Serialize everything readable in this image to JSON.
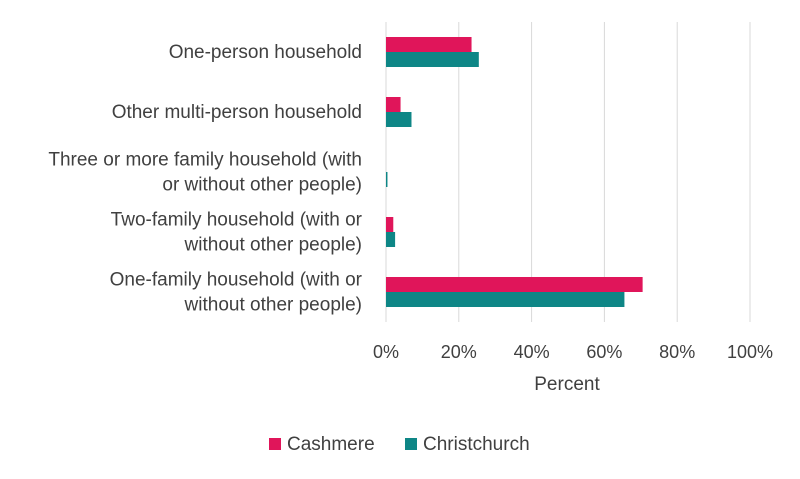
{
  "chart_data": {
    "type": "bar",
    "orientation": "horizontal",
    "title": "",
    "xlabel": "Percent",
    "ylabel": "",
    "xlim": [
      0,
      100
    ],
    "x_ticks": [
      "0%",
      "20%",
      "40%",
      "60%",
      "80%",
      "100%"
    ],
    "grid": true,
    "legend_position": "bottom",
    "categories": [
      {
        "lines": [
          "One-person household"
        ]
      },
      {
        "lines": [
          "Other multi-person household"
        ]
      },
      {
        "lines": [
          "Three or more family household (with",
          "or without other people)"
        ]
      },
      {
        "lines": [
          "Two-family household (with or",
          "without other people)"
        ]
      },
      {
        "lines": [
          "One-family household (with or",
          "without other people)"
        ]
      }
    ],
    "series": [
      {
        "name": "Cashmere",
        "color": "#e0155a",
        "values": [
          23.5,
          4.0,
          0.0,
          2.0,
          70.5
        ]
      },
      {
        "name": "Christchurch",
        "color": "#0e8686",
        "values": [
          25.5,
          7.0,
          0.4,
          2.5,
          65.5
        ]
      }
    ]
  }
}
